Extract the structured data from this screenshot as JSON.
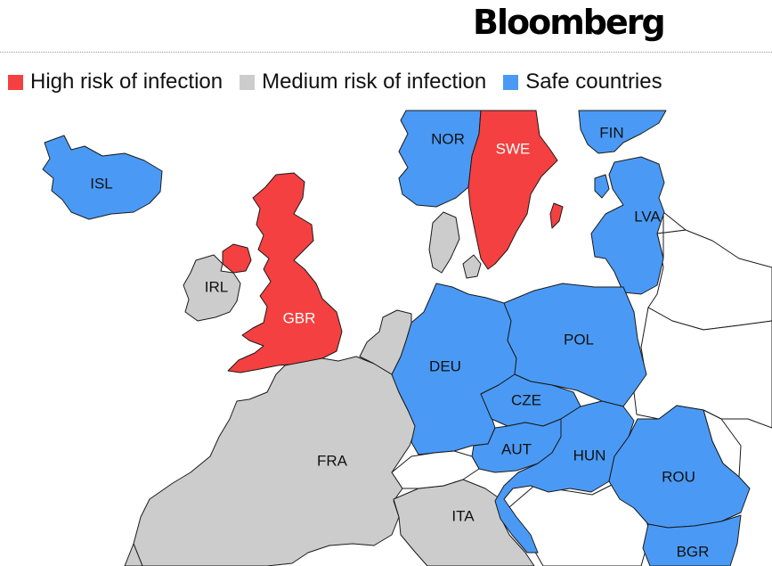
{
  "brand": {
    "name": "Bloomberg"
  },
  "colors": {
    "high": "#f44040",
    "medium": "#cccccc",
    "safe": "#4a9af5",
    "other": "#ffffff"
  },
  "legend": [
    {
      "label": "High risk of infection",
      "category": "high"
    },
    {
      "label": "Medium risk of infection",
      "category": "medium"
    },
    {
      "label": "Safe countries",
      "category": "safe"
    }
  ],
  "map": {
    "countries": [
      {
        "code": "ISL",
        "risk": "safe"
      },
      {
        "code": "NOR",
        "risk": "safe"
      },
      {
        "code": "SWE",
        "risk": "high"
      },
      {
        "code": "FIN",
        "risk": "safe"
      },
      {
        "code": "LVA",
        "risk": "safe"
      },
      {
        "code": "IRL",
        "risk": "medium"
      },
      {
        "code": "GBR",
        "risk": "high"
      },
      {
        "code": "POL",
        "risk": "safe"
      },
      {
        "code": "DEU",
        "risk": "safe"
      },
      {
        "code": "CZE",
        "risk": "safe"
      },
      {
        "code": "AUT",
        "risk": "safe"
      },
      {
        "code": "HUN",
        "risk": "safe"
      },
      {
        "code": "FRA",
        "risk": "medium"
      },
      {
        "code": "ROU",
        "risk": "safe"
      },
      {
        "code": "ITA",
        "risk": "medium"
      },
      {
        "code": "BGR",
        "risk": "safe"
      }
    ]
  }
}
